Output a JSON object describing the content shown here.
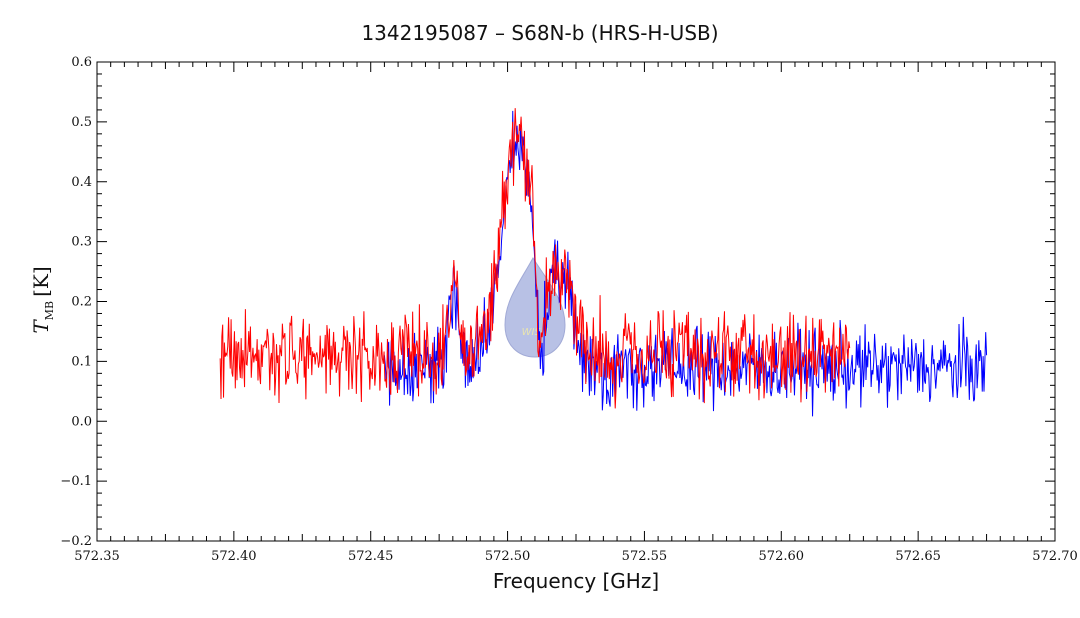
{
  "chart_data": {
    "type": "line",
    "title": "1342195087 – S68N-b (HRS-H-USB)",
    "xlabel": "Frequency [GHz]",
    "ylabel": "T_MB [K]",
    "ylabel_main": "T",
    "ylabel_sub": "MB",
    "ylabel_unit": "[K]",
    "xlim": [
      572.35,
      572.7
    ],
    "ylim": [
      -0.2,
      0.6
    ],
    "x_ticks": [
      572.35,
      572.4,
      572.45,
      572.5,
      572.55,
      572.6,
      572.65,
      572.7
    ],
    "x_tick_labels": [
      "572.35",
      "572.40",
      "572.45",
      "572.50",
      "572.55",
      "572.60",
      "572.65",
      "572.70"
    ],
    "y_ticks": [
      -0.2,
      -0.1,
      0.0,
      0.1,
      0.2,
      0.3,
      0.4,
      0.5,
      0.6
    ],
    "y_tick_labels": [
      "−0.2",
      "−0.1",
      "0.0",
      "0.1",
      "0.2",
      "0.3",
      "0.4",
      "0.5",
      "0.6"
    ],
    "grid": false,
    "series": [
      {
        "color": "#0000ff",
        "x_start": 572.455,
        "x_end": 572.675,
        "baseline": 0.09,
        "noise": 0.045,
        "points": 700
      },
      {
        "color": "#ff0000",
        "x_start": 572.395,
        "x_end": 572.625,
        "baseline": 0.11,
        "noise": 0.05,
        "points": 750
      }
    ],
    "features": [
      {
        "center": 572.504,
        "width": 0.006,
        "amplitude": 0.37
      },
      {
        "center": 572.48,
        "width": 0.002,
        "amplitude": 0.12
      },
      {
        "center": 572.52,
        "width": 0.004,
        "amplitude": 0.14
      },
      {
        "center": 572.512,
        "width": 0.0015,
        "amplitude": -0.13
      }
    ]
  },
  "watermark": {
    "text": "WISH",
    "color": "#9fb0e0"
  }
}
